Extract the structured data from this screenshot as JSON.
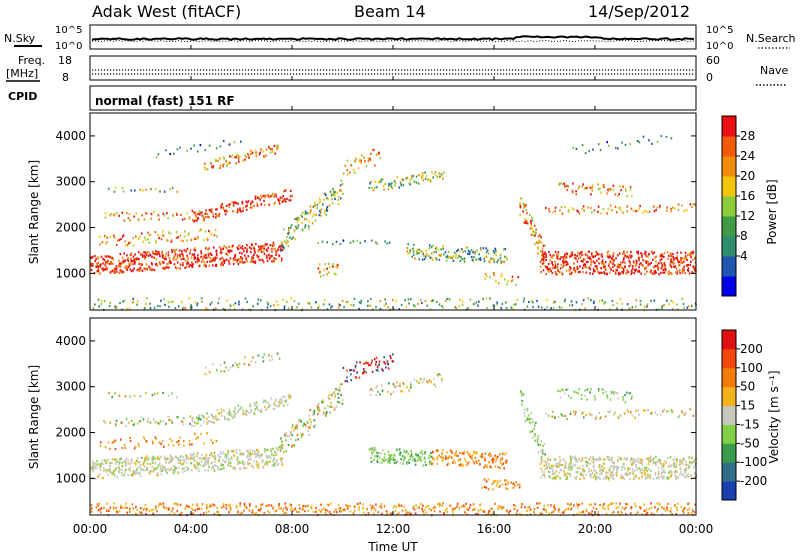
{
  "header": {
    "title": "Adak West (fitACF)",
    "beam": "Beam 14",
    "date": "14/Sep/2012"
  },
  "top_panels": {
    "nsky_label": "N.Sky",
    "nsky_ticks": [
      "10^5",
      "10^0"
    ],
    "nsearch_label": "N.Search",
    "nsearch_ticks": [
      "10^5",
      "10^0"
    ],
    "freq_label_1": "Freq.",
    "freq_label_2": "[MHz]",
    "freq_ticks": [
      "18",
      "8"
    ],
    "nave_label": "Nave",
    "nave_ticks": [
      "60",
      "0"
    ],
    "cpid_label": "CPID",
    "cpid_text": "normal (fast) 151 RF"
  },
  "chart_data": [
    {
      "type": "heatmap",
      "name": "power",
      "ylabel": "Slant Range [km]",
      "yticks": [
        "4000",
        "3000",
        "2000",
        "1000"
      ],
      "colorbar_label": "Power [dB]",
      "colorbar_ticks": [
        "28",
        "24",
        "20",
        "16",
        "12",
        "8",
        "4"
      ],
      "colors": [
        "#0000e8",
        "#1e56b0",
        "#2f8c6c",
        "#3f9b45",
        "#8ecb3a",
        "#f2c40c",
        "#f28c0c",
        "#f25a0c",
        "#e81010"
      ],
      "xlabel": "Time UT",
      "xticks": [
        "00:00",
        "04:00",
        "08:00",
        "12:00",
        "16:00",
        "20:00",
        "00:00"
      ],
      "x_range_hours": [
        0,
        24
      ],
      "y_range_km": [
        200,
        4500
      ]
    },
    {
      "type": "heatmap",
      "name": "velocity",
      "ylabel": "Slant Range [km]",
      "yticks": [
        "4000",
        "3000",
        "2000",
        "1000"
      ],
      "colorbar_label": "Velocity [m s⁻¹]",
      "colorbar_ticks": [
        "200",
        "100",
        "50",
        "15",
        "-15",
        "-50",
        "-100",
        "-200"
      ],
      "colors": [
        "#1a3fb0",
        "#2f6f8a",
        "#3a9b4a",
        "#7fd044",
        "#c8c8c0",
        "#f2b21c",
        "#f27c0c",
        "#f2480c",
        "#e01010"
      ],
      "xlabel": "Time UT",
      "xticks": [
        "00:00",
        "04:00",
        "08:00",
        "12:00",
        "16:00",
        "20:00",
        "00:00"
      ],
      "x_range_hours": [
        0,
        24
      ],
      "y_range_km": [
        200,
        4500
      ]
    }
  ]
}
